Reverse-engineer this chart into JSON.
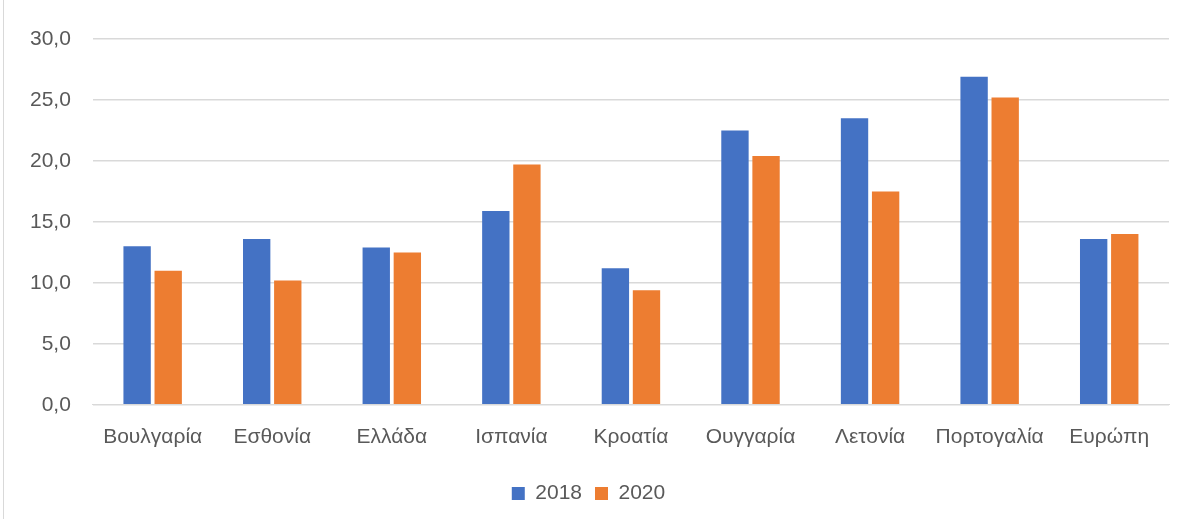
{
  "chart_data": {
    "type": "bar",
    "categories": [
      "Βουλγαρία",
      "Εσθονία",
      "Ελλάδα",
      "Ισπανία",
      "Κροατία",
      "Ουγγαρία",
      "Λετονία",
      "Πορτογαλία",
      "Ευρώπη"
    ],
    "series": [
      {
        "name": "2018",
        "color": "#4472c4",
        "values": [
          13.0,
          13.6,
          12.9,
          15.9,
          11.2,
          22.5,
          23.5,
          26.9,
          13.6
        ]
      },
      {
        "name": "2020",
        "color": "#ed7d31",
        "values": [
          11.0,
          10.2,
          12.5,
          19.7,
          9.4,
          20.4,
          17.5,
          25.2,
          14.0
        ]
      }
    ],
    "ylim": [
      0,
      30
    ],
    "yticks": [
      {
        "value": 0,
        "label": "0,0"
      },
      {
        "value": 5,
        "label": "5,0"
      },
      {
        "value": 10,
        "label": "10,0"
      },
      {
        "value": 15,
        "label": "15,0"
      },
      {
        "value": 20,
        "label": "20,0"
      },
      {
        "value": 25,
        "label": "25,0"
      },
      {
        "value": 30,
        "label": "30,0"
      }
    ],
    "grid": "y",
    "legend": "bottom"
  }
}
